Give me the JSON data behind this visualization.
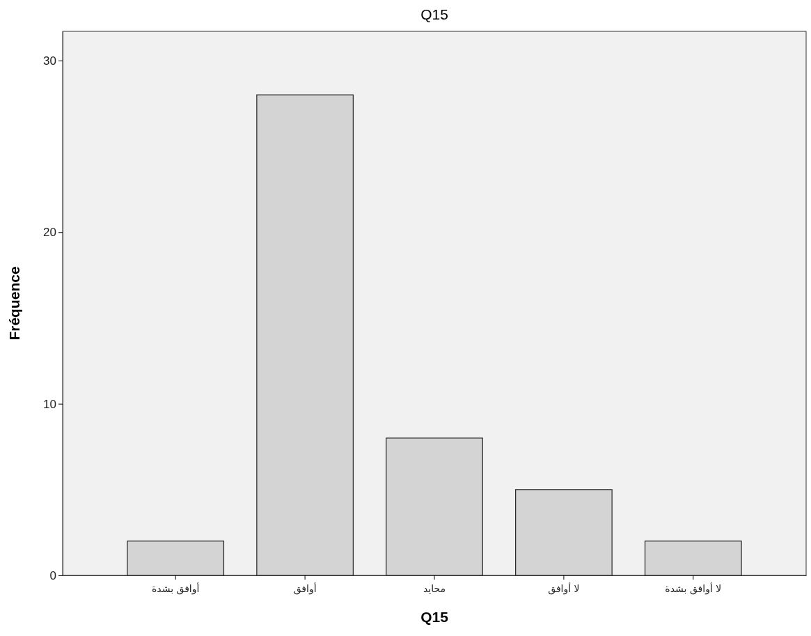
{
  "chart_data": {
    "type": "bar",
    "title": "Q15",
    "xlabel": "Q15",
    "ylabel": "Fréquence",
    "categories": [
      "أوافق بشدة",
      "أوافق",
      "محايد",
      "لا أوافق",
      "لا أوافق بشدة"
    ],
    "values": [
      2,
      28,
      8,
      5,
      2
    ],
    "color": "#d4d4d4",
    "ylim": [
      0,
      31.7
    ],
    "yticks": [
      0,
      10,
      20,
      30
    ],
    "grid": false
  }
}
